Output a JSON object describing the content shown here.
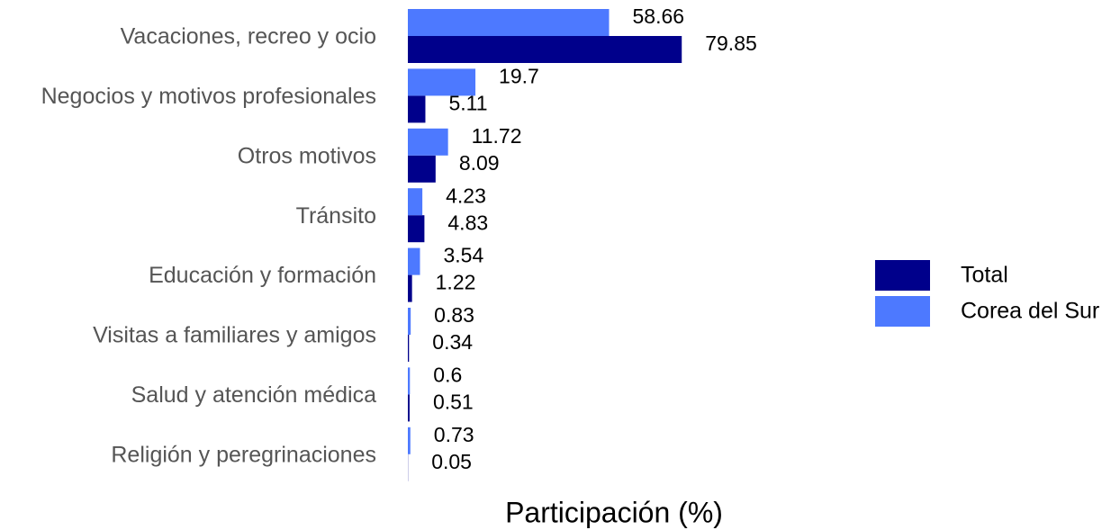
{
  "chart_data": {
    "type": "bar",
    "orientation": "horizontal",
    "x_label": "Participación (%)",
    "categories": [
      "Vacaciones, recreo y ocio",
      "Negocios y motivos profesionales",
      "Otros motivos",
      "Tránsito",
      "Educación y formación",
      "Visitas a familiares y amigos",
      "Salud y atención médica",
      "Religión y peregrinaciones"
    ],
    "series": [
      {
        "name": "Total",
        "color": "#00008b",
        "values": [
          79.85,
          5.11,
          8.09,
          4.83,
          1.22,
          0.34,
          0.51,
          0.05
        ]
      },
      {
        "name": "Corea del Sur",
        "color": "#4d79ff",
        "values": [
          58.66,
          19.7,
          11.72,
          4.23,
          3.54,
          0.83,
          0.6,
          0.73
        ]
      }
    ],
    "xlim": [
      0,
      100
    ],
    "legend": "right"
  }
}
